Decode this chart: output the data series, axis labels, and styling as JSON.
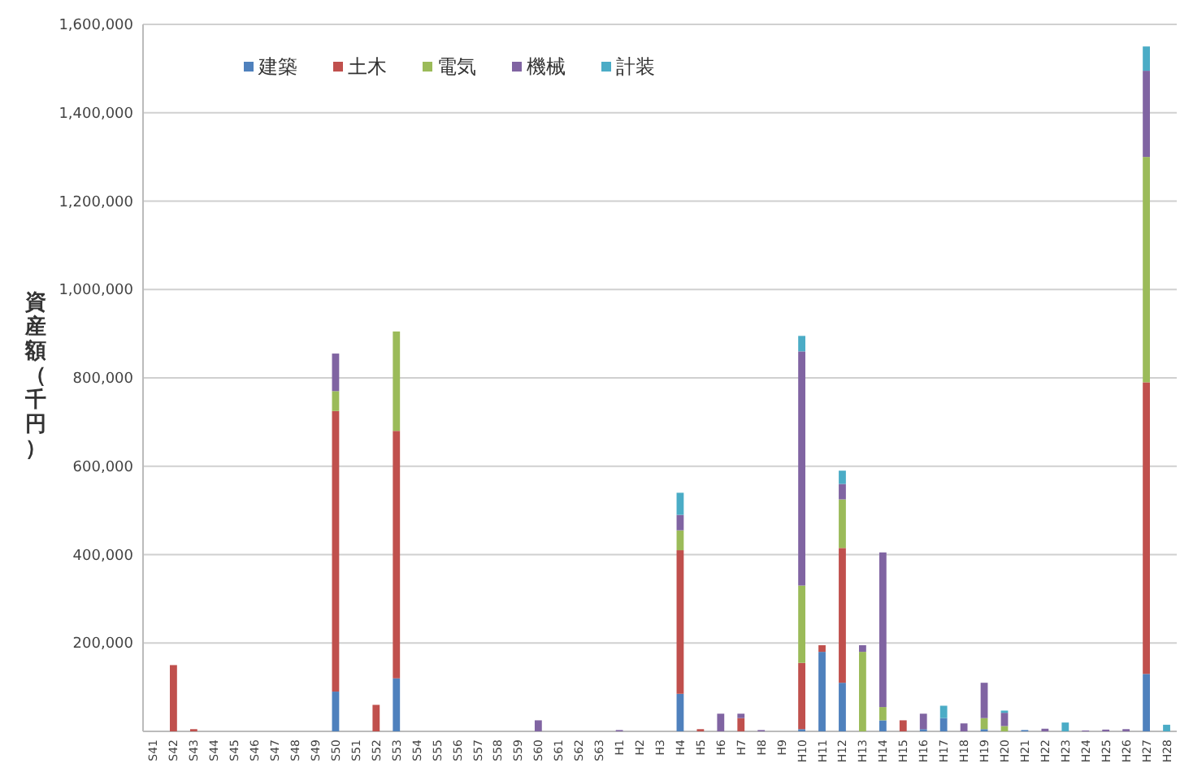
{
  "chart_data": {
    "type": "bar",
    "stacked": true,
    "ylabel": "資産額（千円）",
    "legend": "top left",
    "grid": "y",
    "ylim": [
      0,
      1600000
    ],
    "yticks": [
      {
        "value": 200000,
        "label": "200,000"
      },
      {
        "value": 400000,
        "label": "400,000"
      },
      {
        "value": 600000,
        "label": "600,000"
      },
      {
        "value": 800000,
        "label": "800,000"
      },
      {
        "value": 1000000,
        "label": "1,000,000"
      },
      {
        "value": 1200000,
        "label": "1,200,000"
      },
      {
        "value": 1400000,
        "label": "1,400,000"
      },
      {
        "value": 1600000,
        "label": "1,600,000"
      }
    ],
    "categories": [
      "S41",
      "S42",
      "S43",
      "S44",
      "S45",
      "S46",
      "S47",
      "S48",
      "S49",
      "S50",
      "S51",
      "S52",
      "S53",
      "S54",
      "S55",
      "S56",
      "S57",
      "S58",
      "S59",
      "S60",
      "S61",
      "S62",
      "S63",
      "H1",
      "H2",
      "H3",
      "H4",
      "H5",
      "H6",
      "H7",
      "H8",
      "H9",
      "H10",
      "H11",
      "H12",
      "H13",
      "H14",
      "H15",
      "H16",
      "H17",
      "H18",
      "H19",
      "H20",
      "H21",
      "H22",
      "H23",
      "H24",
      "H25",
      "H26",
      "H27",
      "H28"
    ],
    "series": [
      {
        "name": "建築",
        "color": "#4f81bd",
        "values": [
          null,
          null,
          null,
          null,
          null,
          null,
          null,
          null,
          null,
          90000,
          null,
          null,
          120000,
          null,
          null,
          null,
          null,
          null,
          null,
          null,
          null,
          null,
          null,
          null,
          null,
          null,
          85000,
          null,
          null,
          null,
          null,
          null,
          5000,
          180000,
          110000,
          null,
          25000,
          null,
          5000,
          30000,
          null,
          5000,
          null,
          3000,
          null,
          null,
          null,
          null,
          null,
          130000,
          null
        ]
      },
      {
        "name": "土木",
        "color": "#c0504d",
        "values": [
          null,
          150000,
          5000,
          null,
          null,
          null,
          null,
          null,
          null,
          635000,
          null,
          60000,
          560000,
          null,
          null,
          null,
          null,
          null,
          null,
          null,
          null,
          null,
          null,
          null,
          null,
          null,
          325000,
          5000,
          null,
          30000,
          null,
          null,
          150000,
          15000,
          305000,
          null,
          null,
          25000,
          null,
          null,
          null,
          null,
          null,
          null,
          null,
          null,
          null,
          null,
          null,
          660000,
          null
        ]
      },
      {
        "name": "電気",
        "color": "#9bbb59",
        "values": [
          null,
          null,
          null,
          null,
          null,
          null,
          null,
          null,
          null,
          45000,
          null,
          null,
          225000,
          null,
          null,
          null,
          null,
          null,
          null,
          null,
          null,
          null,
          null,
          null,
          null,
          null,
          45000,
          null,
          null,
          null,
          null,
          null,
          175000,
          null,
          110000,
          180000,
          30000,
          null,
          null,
          null,
          null,
          25000,
          12000,
          null,
          null,
          null,
          null,
          null,
          null,
          510000,
          null
        ]
      },
      {
        "name": "機械",
        "color": "#8064a2",
        "values": [
          null,
          null,
          null,
          null,
          null,
          null,
          null,
          null,
          null,
          85000,
          null,
          null,
          null,
          null,
          null,
          null,
          null,
          null,
          null,
          25000,
          null,
          null,
          null,
          3000,
          null,
          null,
          35000,
          null,
          40000,
          10000,
          3000,
          null,
          530000,
          null,
          35000,
          15000,
          350000,
          null,
          35000,
          null,
          18000,
          80000,
          30000,
          null,
          6000,
          null,
          2000,
          4000,
          5000,
          195000,
          null
        ]
      },
      {
        "name": "計装",
        "color": "#4bacc6",
        "values": [
          null,
          null,
          null,
          null,
          null,
          null,
          null,
          null,
          null,
          null,
          null,
          null,
          null,
          null,
          null,
          null,
          null,
          null,
          null,
          null,
          null,
          null,
          null,
          null,
          null,
          null,
          50000,
          null,
          null,
          null,
          null,
          null,
          35000,
          null,
          30000,
          null,
          null,
          null,
          null,
          28000,
          null,
          null,
          5000,
          null,
          null,
          20000,
          null,
          null,
          null,
          55000,
          15000
        ]
      }
    ]
  }
}
